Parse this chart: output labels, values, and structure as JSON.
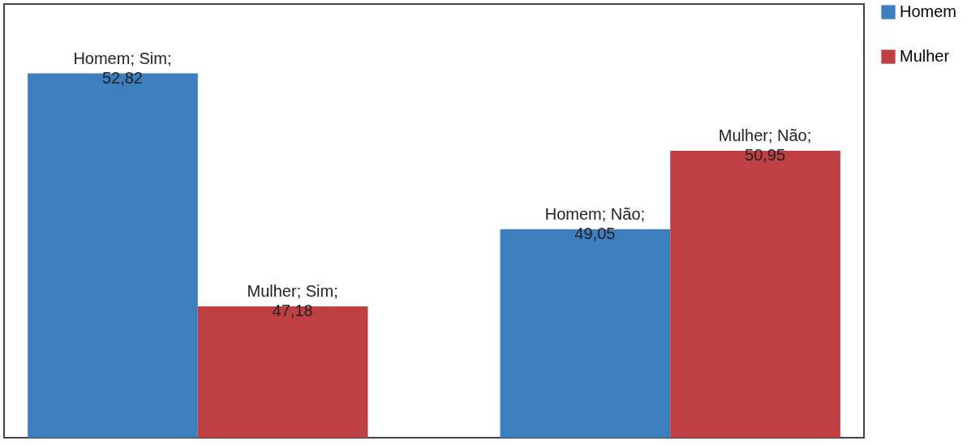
{
  "chart_data": {
    "type": "bar",
    "categories": [
      null,
      null
    ],
    "series": [
      {
        "name": "Homem",
        "color": "#3d7ebf",
        "values": [
          52.82,
          49.05
        ],
        "value_labels": [
          "Homem; Sim;\n52,82",
          "Homem; Não;\n49,05"
        ]
      },
      {
        "name": "Mulher",
        "color": "#be4043",
        "values": [
          47.18,
          50.95
        ],
        "value_labels": [
          "Mulher; Sim;\n47,18",
          "Mulher; Não;\n50,95"
        ]
      }
    ],
    "ylim": [
      44,
      54.5
    ],
    "tick_labels": false,
    "grid": false,
    "legend": "right"
  }
}
